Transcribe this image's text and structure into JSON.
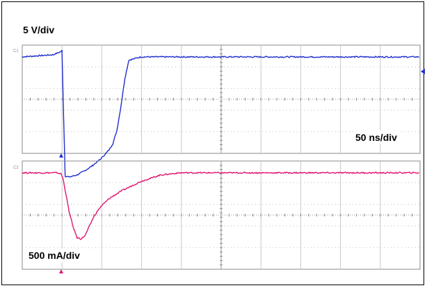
{
  "chart_data": [
    {
      "type": "line",
      "title": "",
      "vertical_scale_label": "5 V/div",
      "time_scale_label": "50 ns/div",
      "channel_tag": "C1",
      "color": "#1f2ecc",
      "divisions": {
        "x": 10,
        "y": 5
      },
      "x": [
        -1.0,
        -0.2,
        0.0,
        0.02,
        0.05,
        0.1,
        0.2,
        0.4,
        0.6,
        0.8,
        1.0,
        1.2,
        1.3,
        1.4,
        1.5,
        1.6,
        1.7,
        2.0,
        3.0,
        5.0,
        7.0,
        9.0
      ],
      "values": [
        0.0,
        0.1,
        0.25,
        0.3,
        -2.0,
        -5.5,
        -5.55,
        -5.45,
        -5.25,
        -5.0,
        -4.7,
        -4.3,
        -4.0,
        -3.4,
        -2.3,
        -1.0,
        -0.15,
        0.0,
        0.0,
        0.0,
        0.0,
        0.0
      ],
      "ylim": [
        -5.8,
        0.8
      ],
      "grid": true
    },
    {
      "type": "line",
      "title": "",
      "vertical_scale_label": "500 mA/div",
      "channel_tag": "C2",
      "color": "#e0156f",
      "divisions": {
        "x": 10,
        "y": 5
      },
      "x": [
        -1.0,
        -0.1,
        0.0,
        0.05,
        0.1,
        0.2,
        0.3,
        0.4,
        0.5,
        0.6,
        0.7,
        0.8,
        0.9,
        1.0,
        1.2,
        1.5,
        2.0,
        2.5,
        3.0,
        4.0,
        6.0,
        9.0
      ],
      "values": [
        0.0,
        0.0,
        -0.05,
        -0.3,
        -0.8,
        -1.8,
        -2.5,
        -3.0,
        -3.05,
        -2.9,
        -2.5,
        -2.1,
        -1.8,
        -1.55,
        -1.2,
        -0.85,
        -0.4,
        -0.1,
        0.0,
        0.0,
        0.0,
        0.0
      ],
      "ylim": [
        -3.3,
        0.5
      ],
      "grid": true
    }
  ]
}
